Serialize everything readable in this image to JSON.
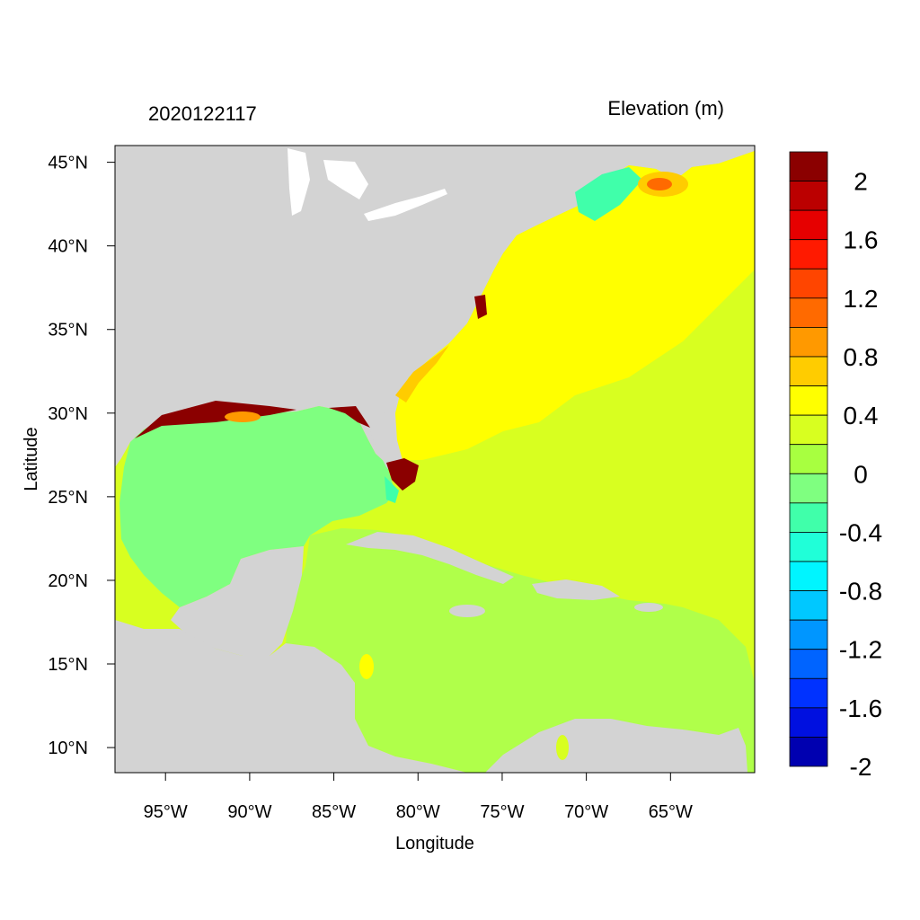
{
  "header": {
    "timestamp": "2020122117",
    "variable": "Elevation (m)"
  },
  "axes": {
    "xlabel": "Longitude",
    "ylabel": "Latitude",
    "x_ticks": [
      {
        "value": -95,
        "label": "95°W"
      },
      {
        "value": -90,
        "label": "90°W"
      },
      {
        "value": -85,
        "label": "85°W"
      },
      {
        "value": -80,
        "label": "80°W"
      },
      {
        "value": -75,
        "label": "75°W"
      },
      {
        "value": -70,
        "label": "70°W"
      },
      {
        "value": -65,
        "label": "65°W"
      }
    ],
    "y_ticks": [
      {
        "value": 45,
        "label": "45°N"
      },
      {
        "value": 40,
        "label": "40°N"
      },
      {
        "value": 35,
        "label": "35°N"
      },
      {
        "value": 30,
        "label": "30°N"
      },
      {
        "value": 25,
        "label": "25°N"
      },
      {
        "value": 20,
        "label": "20°N"
      },
      {
        "value": 15,
        "label": "15°N"
      },
      {
        "value": 10,
        "label": "10°N"
      }
    ],
    "xlim": [
      -98,
      -60
    ],
    "ylim": [
      8.5,
      46
    ]
  },
  "colors": {
    "land": "#d3d3d3",
    "lakes": "#ffffff",
    "gulf": "#7fff80",
    "caribbean": "#b0ff4a",
    "atlantic": "#d8ff20",
    "nearshore": "#ffff00",
    "surge_high": "#8b0000"
  },
  "colorbar": {
    "colors": [
      "#8b0000",
      "#bb0000",
      "#e60000",
      "#ff1a00",
      "#ff4500",
      "#ff6a00",
      "#ff9900",
      "#ffcc00",
      "#ffff00",
      "#d8ff20",
      "#a8ff40",
      "#7fff80",
      "#40ffaa",
      "#20ffd8",
      "#00f5ff",
      "#00c8ff",
      "#0096ff",
      "#0064ff",
      "#0032ff",
      "#0010e0",
      "#0000b0"
    ],
    "labels": [
      "2",
      "1.6",
      "1.2",
      "0.8",
      "0.4",
      "0",
      "-0.4",
      "-0.8",
      "-1.2",
      "-1.6",
      "-2"
    ]
  }
}
